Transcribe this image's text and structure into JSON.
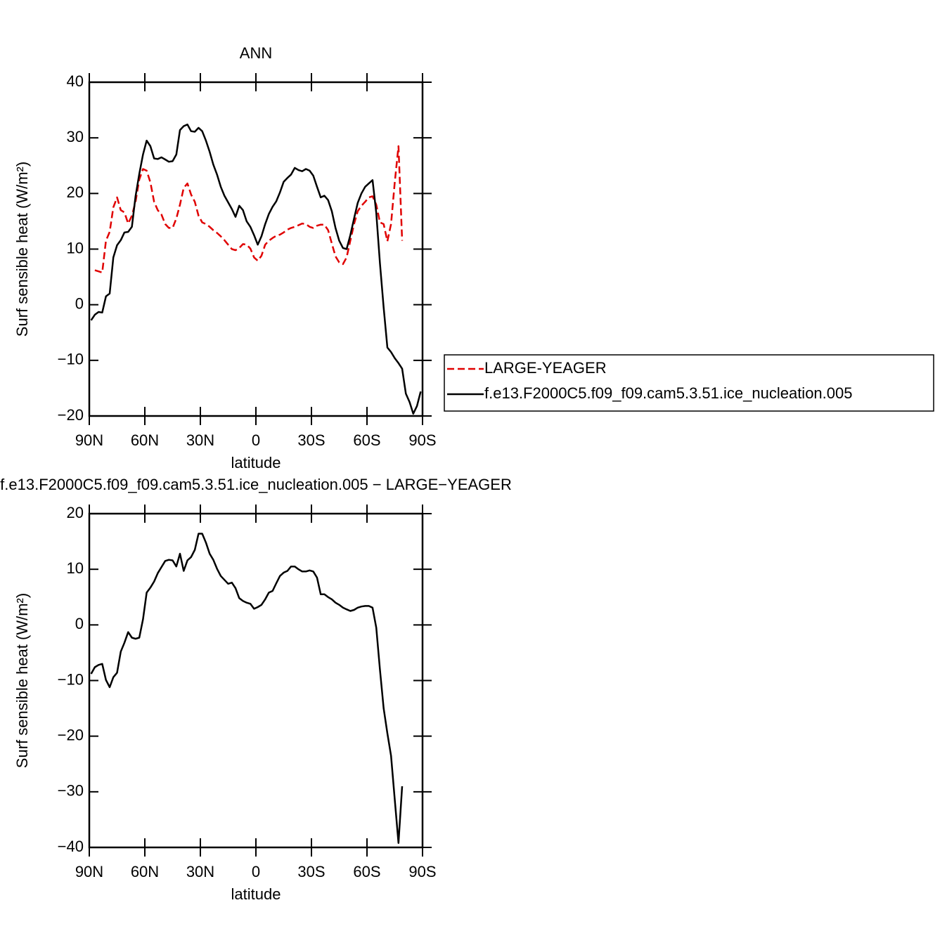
{
  "chart_data": [
    {
      "type": "line",
      "title": "ANN",
      "xlabel": "latitude",
      "ylabel": "Surf sensible heat (W/m²)",
      "x": [
        89,
        87,
        85,
        83,
        81,
        79,
        77,
        75,
        73,
        71,
        69,
        67,
        65,
        63,
        61,
        59,
        57,
        55,
        53,
        51,
        49,
        47,
        45,
        43,
        41,
        39,
        37,
        35,
        33,
        31,
        29,
        27,
        25,
        23,
        21,
        19,
        17,
        15,
        13,
        11,
        9,
        7,
        5,
        3,
        1,
        -1,
        -3,
        -5,
        -7,
        -9,
        -11,
        -13,
        -15,
        -17,
        -19,
        -21,
        -23,
        -25,
        -27,
        -29,
        -31,
        -33,
        -35,
        -37,
        -39,
        -41,
        -43,
        -45,
        -47,
        -49,
        -51,
        -53,
        -55,
        -57,
        -59,
        -61,
        -63,
        -65,
        -67,
        -69,
        -71,
        -73,
        -75,
        -77,
        -79,
        -81,
        -83,
        -85,
        -87,
        -89
      ],
      "series": [
        {
          "name": "LARGE-YEAGER",
          "color": "#e00000",
          "dash": true,
          "values": [
            null,
            6.2,
            6.0,
            5.8,
            11.5,
            13.1,
            17.5,
            19.3,
            17.0,
            16.6,
            14.6,
            16.0,
            18.5,
            22.5,
            24.4,
            24.1,
            22.0,
            18.5,
            17.0,
            16.2,
            14.5,
            13.8,
            13.8,
            15.5,
            18.0,
            21.0,
            21.8,
            19.8,
            18.5,
            16.0,
            14.8,
            14.5,
            14.0,
            13.4,
            12.9,
            12.3,
            11.6,
            10.8,
            10.0,
            9.8,
            10.2,
            10.9,
            10.8,
            10.1,
            8.5,
            7.9,
            8.8,
            10.8,
            11.5,
            12.0,
            12.4,
            12.6,
            13.0,
            13.5,
            13.8,
            14.0,
            14.3,
            14.6,
            14.5,
            14.0,
            13.8,
            14.2,
            14.4,
            14.4,
            13.4,
            11.0,
            8.7,
            7.6,
            7.3,
            8.5,
            11.5,
            14.5,
            16.8,
            17.8,
            18.5,
            19.3,
            19.5,
            18.0,
            14.8,
            14.5,
            11.4,
            14.5,
            22,
            28.5,
            11.5,
            null,
            null,
            null,
            null,
            null
          ]
        },
        {
          "name": "f.e13.F2000C5.f09_f09.cam5.3.51.ice_nucleation.005",
          "color": "#000000",
          "dash": false,
          "values": [
            -2.8,
            -1.8,
            -1.3,
            -1.4,
            1.5,
            2.0,
            8.5,
            10.7,
            11.6,
            13.0,
            13.1,
            14.0,
            19.5,
            23.5,
            27,
            29.5,
            28.5,
            26.3,
            26.2,
            26.5,
            26.1,
            25.7,
            25.8,
            27,
            31.4,
            32.1,
            32.4,
            31.2,
            31.1,
            31.8,
            31.2,
            29.5,
            27.5,
            25.2,
            23.4,
            21.2,
            19.6,
            18.4,
            17.2,
            15.8,
            17.8,
            17.0,
            15,
            14,
            12.5,
            10.8,
            12.3,
            14.5,
            16.3,
            17.6,
            18.6,
            20.2,
            22.1,
            22.8,
            23.4,
            24.6,
            24.2,
            24.0,
            24.4,
            24.1,
            23.2,
            21.2,
            19.3,
            19.6,
            18.8,
            16.8,
            13.8,
            11.5,
            10.2,
            10.0,
            12.5,
            15.5,
            18.3,
            20.0,
            21.2,
            21.8,
            22.4,
            16.5,
            7.5,
            -0.5,
            -7.7,
            -8.5,
            -9.6,
            -10.5,
            -11.5,
            -16.0,
            -17.5,
            -19.6,
            -18.2,
            -15.6
          ]
        }
      ],
      "xlim": [
        90,
        -90
      ],
      "xticks": [
        {
          "value": 90,
          "label": "90N"
        },
        {
          "value": 60,
          "label": "60N"
        },
        {
          "value": 30,
          "label": "30N"
        },
        0,
        {
          "value": -30,
          "label": "30S"
        },
        {
          "value": -60,
          "label": "60S"
        },
        {
          "value": -90,
          "label": "90S"
        }
      ],
      "ylim": [
        -20,
        40
      ],
      "yticks": [
        {
          "value": -20,
          "label": "−20"
        },
        {
          "value": -10,
          "label": "−10"
        },
        0,
        10,
        20,
        30,
        40
      ],
      "legend": "right"
    },
    {
      "type": "line",
      "title": "f.e13.F2000C5.f09_f09.cam5.3.51.ice_nucleation.005 − LARGE−YEAGER",
      "xlabel": "latitude",
      "ylabel": "Surf sensible heat (W/m²)",
      "x": [
        89,
        87,
        85,
        83,
        81,
        79,
        77,
        75,
        73,
        71,
        69,
        67,
        65,
        63,
        61,
        59,
        57,
        55,
        53,
        51,
        49,
        47,
        45,
        43,
        41,
        39,
        37,
        35,
        33,
        31,
        29,
        27,
        25,
        23,
        21,
        19,
        17,
        15,
        13,
        11,
        9,
        7,
        5,
        3,
        1,
        -1,
        -3,
        -5,
        -7,
        -9,
        -11,
        -13,
        -15,
        -17,
        -19,
        -21,
        -23,
        -25,
        -27,
        -29,
        -31,
        -33,
        -35,
        -37,
        -39,
        -41,
        -43,
        -45,
        -47,
        -49,
        -51,
        -53,
        -55,
        -57,
        -59,
        -61,
        -63,
        -65,
        -67,
        -69,
        -71,
        -73,
        -75,
        -77,
        -79,
        -81,
        -83,
        -85,
        -87,
        -89
      ],
      "series": [
        {
          "color": "#000000",
          "dash": false,
          "values": [
            -8.8,
            -7.6,
            -7.2,
            -7.0,
            -9.9,
            -11.2,
            -9.4,
            -8.6,
            -4.8,
            -3.2,
            -1.3,
            -2.3,
            -2.5,
            -2.3,
            1.0,
            5.8,
            6.7,
            7.8,
            9.3,
            10.4,
            11.5,
            11.7,
            11.6,
            10.5,
            12.8,
            9.7,
            11.6,
            12.2,
            13.5,
            16.4,
            16.4,
            14.8,
            12.8,
            11.7,
            10.1,
            8.8,
            8.1,
            7.4,
            7.6,
            6.6,
            4.8,
            4.3,
            4.0,
            3.8,
            2.9,
            3.2,
            3.6,
            4.6,
            5.8,
            6.1,
            7.5,
            8.8,
            9.4,
            9.7,
            10.5,
            10.5,
            10.0,
            9.6,
            9.6,
            9.8,
            9.6,
            8.5,
            5.5,
            5.5,
            5.0,
            4.6,
            4.0,
            3.6,
            3.1,
            2.8,
            2.5,
            2.7,
            3.1,
            3.3,
            3.4,
            3.4,
            3.1,
            -0.5,
            -8,
            -15,
            -19.5,
            -23.5,
            -31.4,
            -39.2,
            -29,
            null,
            null,
            null,
            null,
            null
          ]
        }
      ],
      "xlim": [
        90,
        -90
      ],
      "xticks": [
        {
          "value": 90,
          "label": "90N"
        },
        {
          "value": 60,
          "label": "60N"
        },
        {
          "value": 30,
          "label": "30N"
        },
        0,
        {
          "value": -30,
          "label": "30S"
        },
        {
          "value": -60,
          "label": "60S"
        },
        {
          "value": -90,
          "label": "90S"
        }
      ],
      "ylim": [
        -40,
        20
      ],
      "yticks": [
        {
          "value": -40,
          "label": "−40"
        },
        {
          "value": -30,
          "label": "−30"
        },
        {
          "value": -20,
          "label": "−20"
        },
        {
          "value": -10,
          "label": "−10"
        },
        0,
        10,
        20
      ]
    }
  ]
}
